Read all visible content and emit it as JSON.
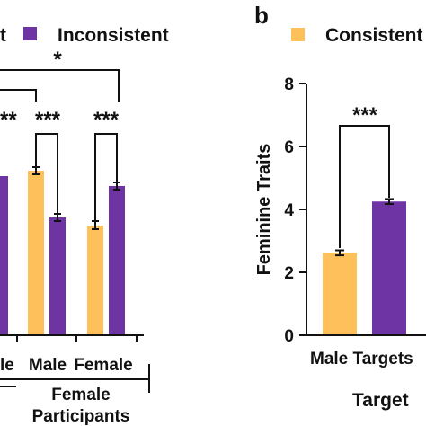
{
  "panel_b_label": "b",
  "chart_data": [
    {
      "type": "bar",
      "panel": "a",
      "legend": [
        {
          "name": "Consistent",
          "color": "#FDC05A",
          "visible_text": "t"
        },
        {
          "name": "Inconsistent",
          "color": "#6E34A3"
        }
      ],
      "groups": [
        {
          "participants": "",
          "categories": [
            "...le"
          ]
        },
        {
          "participants": "Female Participants",
          "categories": [
            "Male",
            "Female"
          ]
        }
      ],
      "group_label_lines": [
        "Female",
        "Participants"
      ],
      "category_labels": [
        "le",
        "Male",
        "Female"
      ],
      "series": [
        {
          "name": "Consistent",
          "values": [
            null,
            5.2,
            3.5
          ]
        },
        {
          "name": "Inconsistent",
          "values": [
            5.1,
            3.7,
            4.7
          ]
        }
      ],
      "significance": [
        "*",
        "**",
        "***",
        "***"
      ],
      "ylim": [
        0,
        8
      ]
    },
    {
      "type": "bar",
      "panel": "b",
      "legend": [
        {
          "name": "Consistent",
          "color": "#FDC05A"
        }
      ],
      "categories": [
        "Male Targets"
      ],
      "series": [
        {
          "name": "Consistent",
          "values": [
            2.62
          ],
          "errors": [
            0.08
          ]
        },
        {
          "name": "Inconsistent",
          "values": [
            4.25
          ],
          "errors": [
            0.08
          ]
        }
      ],
      "ylabel": "Feminine Traits",
      "xlabel": "Target",
      "ylim": [
        0,
        8
      ],
      "yticks": [
        0,
        2,
        4,
        6,
        8
      ],
      "significance": "***"
    }
  ]
}
